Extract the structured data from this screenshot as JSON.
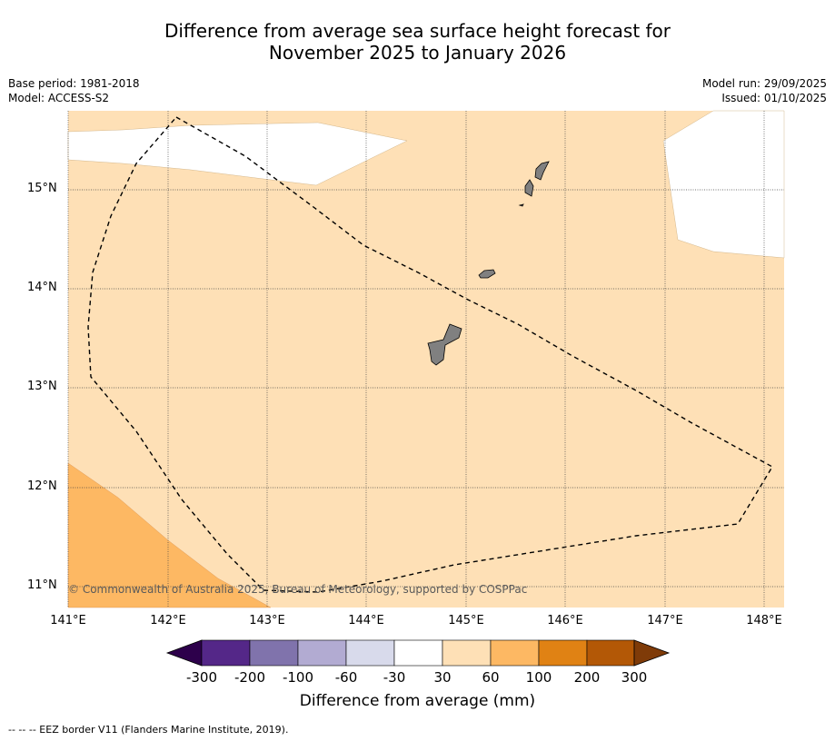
{
  "title_line1": "Difference from average sea surface height forecast for",
  "title_line2": "November 2025 to January 2026",
  "base_period": "Base period: 1981-2018",
  "model": "Model: ACCESS-S2",
  "model_run": "Model run: 29/09/2025",
  "issued": "Issued: 01/10/2025",
  "copyright": "© Commonwealth of Australia 2025, Bureau of Meteorology, supported by COSPPac",
  "footnote": "--  --  -- EEZ border V11 (Flanders Marine Institute, 2019).",
  "lat_labels": [
    "15°N",
    "14°N",
    "13°N",
    "12°N",
    "11°N"
  ],
  "lon_labels": [
    "141°E",
    "142°E",
    "143°E",
    "144°E",
    "145°E",
    "146°E",
    "147°E",
    "148°E"
  ],
  "colorbar": {
    "label": "Difference from average (mm)",
    "ticks": [
      "-300",
      "-200",
      "-100",
      "-60",
      "-30",
      "30",
      "60",
      "100",
      "200",
      "300"
    ],
    "colors": {
      "under": "#2d004b",
      "bins": [
        "#542788",
        "#8073ac",
        "#b2abd2",
        "#d8daeb",
        "#ffffff",
        "#fee0b6",
        "#fdb863",
        "#e08214",
        "#b35806"
      ],
      "over": "#7f3b08"
    }
  },
  "map_colors": {
    "zone_30_60": "#fee0b6",
    "zone_60_100": "#fdb863",
    "zone_neutral": "#ffffff",
    "land": "#808080"
  }
}
